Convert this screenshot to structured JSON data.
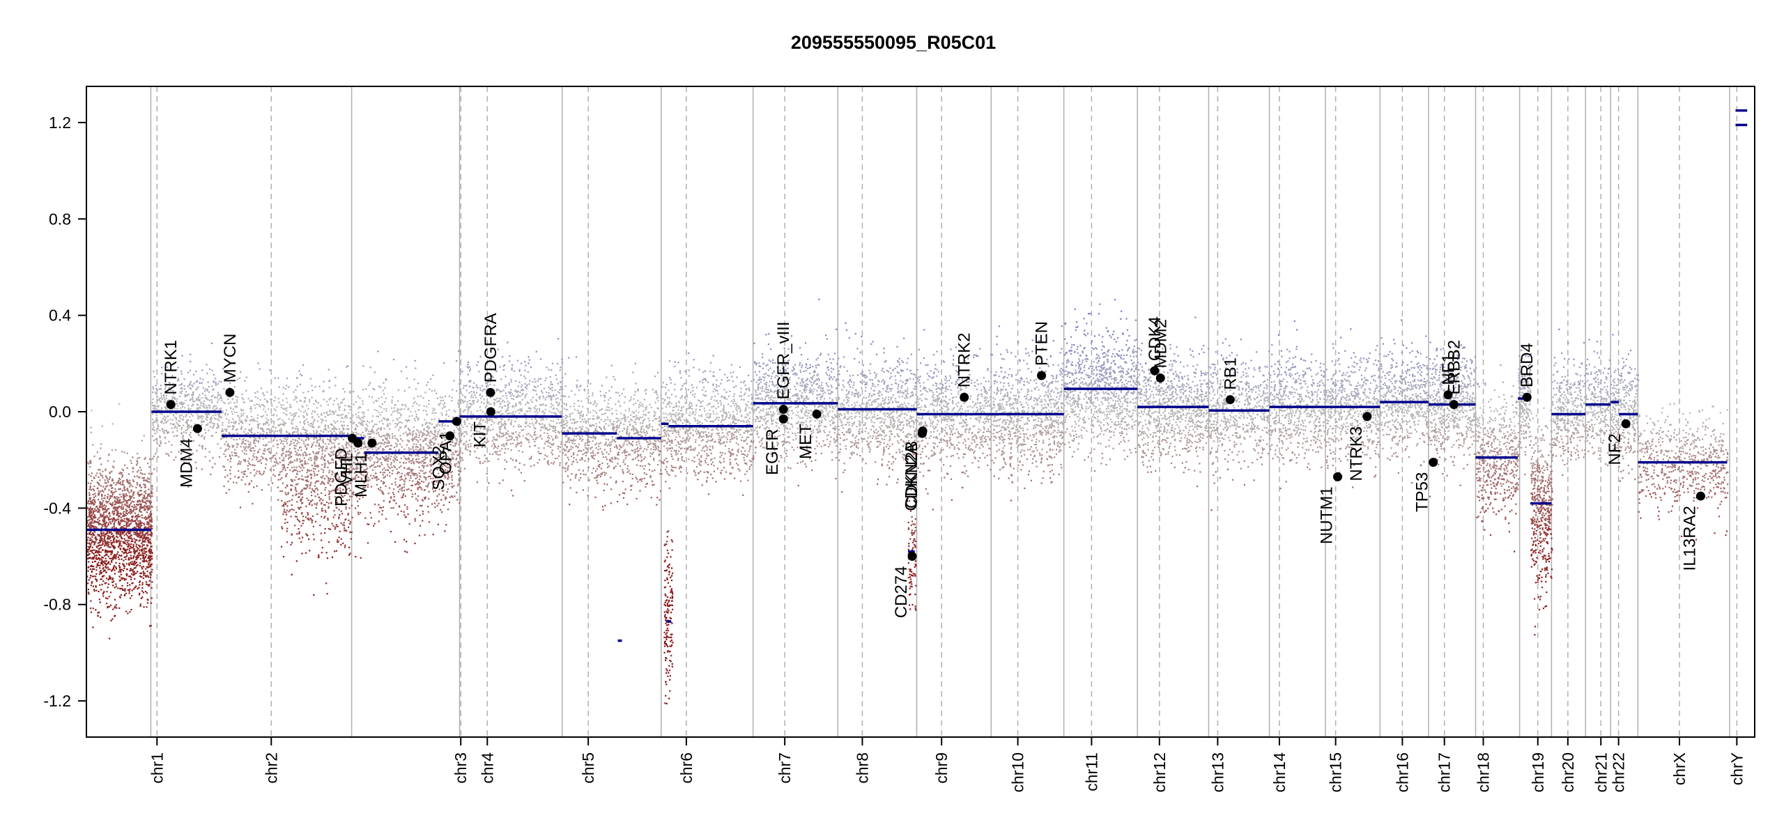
{
  "chart_data": {
    "type": "scatter",
    "title": "209555550095_R05C01",
    "xlabel": "",
    "ylabel": "",
    "ylim": [
      -1.35,
      1.35
    ],
    "y_ticks": [
      -1.2,
      -0.8,
      -0.4,
      0.0,
      0.4,
      0.8,
      1.2
    ],
    "y_tick_labels": [
      "-1.2",
      "-0.8",
      "-0.4",
      "0.0",
      "0.4",
      "0.8",
      "1.2"
    ],
    "colors": {
      "segment": "#00008b",
      "gain": "#7b7fc4",
      "neutral": "#b8b8b8",
      "loss": "#8b1a1a",
      "point": "#000000",
      "chrom_line": "#b0b0b0",
      "centromere_line": "#b0b0b0"
    },
    "chromosomes": [
      {
        "name": "chr1",
        "start": 0.0,
        "end": 0.0386,
        "centromere": 0.0423
      },
      {
        "name": "chr2",
        "start": 0.0386,
        "end": 0.159,
        "centromere": 0.1108
      },
      {
        "name": "chr3",
        "start": 0.159,
        "end": 0.2237,
        "centromere": 0.2244
      },
      {
        "name": "chr4",
        "start": 0.2237,
        "end": 0.2852,
        "centromere": 0.2403
      },
      {
        "name": "chr5",
        "start": 0.2852,
        "end": 0.3445,
        "centromere": 0.3008
      },
      {
        "name": "chr6",
        "start": 0.3445,
        "end": 0.3996,
        "centromere": 0.3596
      },
      {
        "name": "chr7",
        "start": 0.3996,
        "end": 0.4504,
        "centromere": 0.4186
      },
      {
        "name": "chr8",
        "start": 0.4504,
        "end": 0.4977,
        "centromere": 0.4651
      },
      {
        "name": "chr9",
        "start": 0.4977,
        "end": 0.5423,
        "centromere": 0.5126
      },
      {
        "name": "chr10",
        "start": 0.5423,
        "end": 0.5859,
        "centromere": 0.5583
      },
      {
        "name": "chr11",
        "start": 0.5859,
        "end": 0.63,
        "centromere": 0.6025
      },
      {
        "name": "chr12",
        "start": 0.63,
        "end": 0.6727,
        "centromere": 0.6432
      },
      {
        "name": "chr13",
        "start": 0.6727,
        "end": 0.7091,
        "centromere": 0.6781
      },
      {
        "name": "chr14",
        "start": 0.7091,
        "end": 0.7427,
        "centromere": 0.7151
      },
      {
        "name": "chr15",
        "start": 0.7427,
        "end": 0.7754,
        "centromere": 0.7488
      },
      {
        "name": "chr16",
        "start": 0.7754,
        "end": 0.8045,
        "centromere": 0.7888
      },
      {
        "name": "chr17",
        "start": 0.8045,
        "end": 0.8327,
        "centromere": 0.814
      },
      {
        "name": "chr18",
        "start": 0.8327,
        "end": 0.8591,
        "centromere": 0.8373
      },
      {
        "name": "chr19",
        "start": 0.8591,
        "end": 0.8782,
        "centromere": 0.87
      },
      {
        "name": "chr20",
        "start": 0.8782,
        "end": 0.8986,
        "centromere": 0.888
      },
      {
        "name": "chr21",
        "start": 0.8986,
        "end": 0.9136,
        "centromere": 0.9078
      },
      {
        "name": "chr22",
        "start": 0.9136,
        "end": 0.93,
        "centromere": 0.9184
      },
      {
        "name": "chrX",
        "start": 0.93,
        "end": 0.985,
        "centromere": 0.9549
      },
      {
        "name": "chrY",
        "start": 0.985,
        "end": 1.0,
        "centromere": 0.9893
      }
    ],
    "segments": [
      {
        "chrom": "chr1",
        "x_start": 0.0,
        "x_end": 0.039,
        "value": -0.49
      },
      {
        "chrom": "chr1",
        "x_start": 0.039,
        "x_end": 0.081,
        "value": 0.0
      },
      {
        "chrom": "chr2",
        "x_start": 0.081,
        "x_end": 0.159,
        "value": -0.1
      },
      {
        "chrom": "chr3",
        "x_start": 0.159,
        "x_end": 0.1665,
        "value": -0.11
      },
      {
        "chrom": "chr3",
        "x_start": 0.1665,
        "x_end": 0.211,
        "value": -0.17
      },
      {
        "chrom": "chr3",
        "x_start": 0.211,
        "x_end": 0.2237,
        "value": -0.04
      },
      {
        "chrom": "chr4",
        "x_start": 0.2237,
        "x_end": 0.285,
        "value": -0.02
      },
      {
        "chrom": "chr5",
        "x_start": 0.285,
        "x_end": 0.318,
        "value": -0.09
      },
      {
        "chrom": "chr5",
        "x_start": 0.318,
        "x_end": 0.3445,
        "value": -0.11
      },
      {
        "chrom": "chr6",
        "x_start": 0.3445,
        "x_end": 0.349,
        "value": -0.05
      },
      {
        "chrom": "chr6",
        "x_start": 0.349,
        "x_end": 0.3996,
        "value": -0.06
      },
      {
        "chrom": "chr7",
        "x_start": 0.3996,
        "x_end": 0.4504,
        "value": 0.035
      },
      {
        "chrom": "chr8",
        "x_start": 0.4504,
        "x_end": 0.4977,
        "value": 0.01
      },
      {
        "chrom": "chr9",
        "x_start": 0.4977,
        "x_end": 0.5423,
        "value": -0.01
      },
      {
        "chrom": "chr10",
        "x_start": 0.5423,
        "x_end": 0.5859,
        "value": -0.01
      },
      {
        "chrom": "chr11",
        "x_start": 0.5859,
        "x_end": 0.63,
        "value": 0.095
      },
      {
        "chrom": "chr12",
        "x_start": 0.63,
        "x_end": 0.6727,
        "value": 0.02
      },
      {
        "chrom": "chr13",
        "x_start": 0.6727,
        "x_end": 0.7091,
        "value": 0.005
      },
      {
        "chrom": "chr14",
        "x_start": 0.7091,
        "x_end": 0.7427,
        "value": 0.02
      },
      {
        "chrom": "chr15",
        "x_start": 0.7427,
        "x_end": 0.7754,
        "value": 0.02
      },
      {
        "chrom": "chr16",
        "x_start": 0.7754,
        "x_end": 0.8045,
        "value": 0.04
      },
      {
        "chrom": "chr17",
        "x_start": 0.8045,
        "x_end": 0.8327,
        "value": 0.03
      },
      {
        "chrom": "chr18",
        "x_start": 0.8327,
        "x_end": 0.858,
        "value": -0.19
      },
      {
        "chrom": "chr19",
        "x_start": 0.858,
        "x_end": 0.8655,
        "value": 0.055
      },
      {
        "chrom": "chr19",
        "x_start": 0.8655,
        "x_end": 0.8782,
        "value": -0.38
      },
      {
        "chrom": "chr20",
        "x_start": 0.8782,
        "x_end": 0.8986,
        "value": -0.01
      },
      {
        "chrom": "chr21",
        "x_start": 0.8986,
        "x_end": 0.9136,
        "value": 0.03
      },
      {
        "chrom": "chr22",
        "x_start": 0.9136,
        "x_end": 0.9185,
        "value": 0.04
      },
      {
        "chrom": "chr22",
        "x_start": 0.9185,
        "x_end": 0.93,
        "value": -0.01
      },
      {
        "chrom": "chrX",
        "x_start": 0.93,
        "x_end": 0.9835,
        "value": -0.21
      },
      {
        "chrom": "chrY",
        "x_start": 0.9885,
        "x_end": 0.9955,
        "value": 1.25
      },
      {
        "chrom": "chrY",
        "x_start": 0.9885,
        "x_end": 0.9955,
        "value": 1.19
      },
      {
        "chrom": "chr9",
        "x_start": 0.4925,
        "x_end": 0.4965,
        "value": -0.58
      },
      {
        "chrom": "chr5",
        "x_start": 0.3185,
        "x_end": 0.321,
        "value": -0.95
      },
      {
        "chrom": "chr6",
        "x_start": 0.3475,
        "x_end": 0.3505,
        "value": -0.87
      }
    ],
    "genes": [
      {
        "name": "NTRK1",
        "x": 0.0506,
        "y": 0.03,
        "label_side": "above"
      },
      {
        "name": "MDM4",
        "x": 0.0666,
        "y": -0.07,
        "label_side": "below"
      },
      {
        "name": "MYCN",
        "x": 0.086,
        "y": 0.08,
        "label_side": "above"
      },
      {
        "name": "PDGFD",
        "x": 0.1594,
        "y": -0.11,
        "label_side": "below"
      },
      {
        "name": "VHL",
        "x": 0.1628,
        "y": -0.13,
        "label_side": "below"
      },
      {
        "name": "MLH1",
        "x": 0.1712,
        "y": -0.13,
        "label_side": "below"
      },
      {
        "name": "SOX2",
        "x": 0.2179,
        "y": -0.1,
        "label_side": "below"
      },
      {
        "name": "OPA1",
        "x": 0.222,
        "y": -0.04,
        "label_side": "below"
      },
      {
        "name": "PDGFRA",
        "x": 0.2422,
        "y": 0.08,
        "label_side": "above"
      },
      {
        "name": "KIT",
        "x": 0.2424,
        "y": 0.0,
        "label_side": "below"
      },
      {
        "name": "EGFR_vIII",
        "x": 0.4178,
        "y": 0.01,
        "label_side": "above"
      },
      {
        "name": "EGFR",
        "x": 0.4178,
        "y": -0.03,
        "label_side": "below"
      },
      {
        "name": "MET",
        "x": 0.4378,
        "y": -0.01,
        "label_side": "below"
      },
      {
        "name": "CD274",
        "x": 0.495,
        "y": -0.6,
        "label_side": "below"
      },
      {
        "name": "CDKN2A",
        "x": 0.501,
        "y": -0.09,
        "label_side": "below"
      },
      {
        "name": "CDKN2B",
        "x": 0.5013,
        "y": -0.08,
        "label_side": "below"
      },
      {
        "name": "NTRK2",
        "x": 0.5262,
        "y": 0.06,
        "label_side": "above"
      },
      {
        "name": "PTEN",
        "x": 0.5725,
        "y": 0.15,
        "label_side": "above"
      },
      {
        "name": "CDK4",
        "x": 0.6403,
        "y": 0.17,
        "label_side": "above"
      },
      {
        "name": "MDM2",
        "x": 0.6438,
        "y": 0.14,
        "label_side": "above"
      },
      {
        "name": "RB1",
        "x": 0.6856,
        "y": 0.05,
        "label_side": "above"
      },
      {
        "name": "NUTM1",
        "x": 0.75,
        "y": -0.27,
        "label_side": "below"
      },
      {
        "name": "NTRK3",
        "x": 0.7677,
        "y": -0.02,
        "label_side": "below"
      },
      {
        "name": "TP53",
        "x": 0.8073,
        "y": -0.21,
        "label_side": "below"
      },
      {
        "name": "NF1",
        "x": 0.8162,
        "y": 0.07,
        "label_side": "above"
      },
      {
        "name": "ERBB2",
        "x": 0.8197,
        "y": 0.03,
        "label_side": "above"
      },
      {
        "name": "BRD4",
        "x": 0.8635,
        "y": 0.06,
        "label_side": "above"
      },
      {
        "name": "NF2",
        "x": 0.9228,
        "y": -0.05,
        "label_side": "below"
      },
      {
        "name": "IL13RA2",
        "x": 0.9676,
        "y": -0.35,
        "label_side": "below"
      }
    ],
    "noise_profiles": [
      {
        "chrom": "chr1",
        "x_start": 0.0,
        "x_end": 0.039,
        "center": -0.49,
        "spread": 0.14,
        "n": 1900,
        "seed": 11
      },
      {
        "chrom": "chr1",
        "x_start": 0.039,
        "x_end": 0.081,
        "center": 0.0,
        "spread": 0.09,
        "n": 600,
        "seed": 12
      },
      {
        "chrom": "chr2",
        "x_start": 0.081,
        "x_end": 0.159,
        "center": -0.1,
        "spread": 0.11,
        "n": 1100,
        "seed": 13
      },
      {
        "chrom": "chr2",
        "x_start": 0.1165,
        "x_end": 0.159,
        "center": -0.33,
        "spread": 0.13,
        "n": 500,
        "seed": 14
      },
      {
        "chrom": "chr3",
        "x_start": 0.159,
        "x_end": 0.2237,
        "center": -0.17,
        "spread": 0.13,
        "n": 1300,
        "seed": 15
      },
      {
        "chrom": "chr4",
        "x_start": 0.2237,
        "x_end": 0.285,
        "center": -0.02,
        "spread": 0.11,
        "n": 900,
        "seed": 16
      },
      {
        "chrom": "chr5",
        "x_start": 0.285,
        "x_end": 0.3445,
        "center": -0.1,
        "spread": 0.11,
        "n": 900,
        "seed": 17
      },
      {
        "chrom": "chr6",
        "x_start": 0.3445,
        "x_end": 0.3996,
        "center": -0.06,
        "spread": 0.11,
        "n": 900,
        "seed": 18
      },
      {
        "chrom": "chr6",
        "x_start": 0.346,
        "x_end": 0.351,
        "center": -0.85,
        "spread": 0.18,
        "n": 160,
        "seed": 19
      },
      {
        "chrom": "chr7",
        "x_start": 0.3996,
        "x_end": 0.4504,
        "center": 0.035,
        "spread": 0.11,
        "n": 900,
        "seed": 20
      },
      {
        "chrom": "chr8",
        "x_start": 0.4504,
        "x_end": 0.4977,
        "center": 0.01,
        "spread": 0.11,
        "n": 800,
        "seed": 21
      },
      {
        "chrom": "chr9",
        "x_start": 0.4977,
        "x_end": 0.5423,
        "center": -0.01,
        "spread": 0.11,
        "n": 700,
        "seed": 22
      },
      {
        "chrom": "chr9",
        "x_start": 0.4922,
        "x_end": 0.4968,
        "center": -0.55,
        "spread": 0.12,
        "n": 90,
        "seed": 23
      },
      {
        "chrom": "chr10",
        "x_start": 0.5423,
        "x_end": 0.5859,
        "center": -0.01,
        "spread": 0.12,
        "n": 800,
        "seed": 24
      },
      {
        "chrom": "chr11",
        "x_start": 0.5859,
        "x_end": 0.63,
        "center": 0.095,
        "spread": 0.12,
        "n": 900,
        "seed": 25
      },
      {
        "chrom": "chr12",
        "x_start": 0.63,
        "x_end": 0.6727,
        "center": 0.02,
        "spread": 0.11,
        "n": 800,
        "seed": 26
      },
      {
        "chrom": "chr13",
        "x_start": 0.6727,
        "x_end": 0.7091,
        "center": 0.005,
        "spread": 0.11,
        "n": 550,
        "seed": 27
      },
      {
        "chrom": "chr14",
        "x_start": 0.7091,
        "x_end": 0.7427,
        "center": 0.02,
        "spread": 0.11,
        "n": 550,
        "seed": 28
      },
      {
        "chrom": "chr15",
        "x_start": 0.7427,
        "x_end": 0.7754,
        "center": 0.02,
        "spread": 0.11,
        "n": 550,
        "seed": 29
      },
      {
        "chrom": "chr16",
        "x_start": 0.7754,
        "x_end": 0.8045,
        "center": 0.04,
        "spread": 0.11,
        "n": 500,
        "seed": 30
      },
      {
        "chrom": "chr17",
        "x_start": 0.8045,
        "x_end": 0.8327,
        "center": 0.03,
        "spread": 0.11,
        "n": 550,
        "seed": 31
      },
      {
        "chrom": "chr18",
        "x_start": 0.8327,
        "x_end": 0.858,
        "center": -0.19,
        "spread": 0.13,
        "n": 500,
        "seed": 32
      },
      {
        "chrom": "chr19",
        "x_start": 0.858,
        "x_end": 0.8655,
        "center": 0.05,
        "spread": 0.1,
        "n": 200,
        "seed": 33
      },
      {
        "chrom": "chr19",
        "x_start": 0.8655,
        "x_end": 0.8782,
        "center": -0.4,
        "spread": 0.17,
        "n": 450,
        "seed": 34
      },
      {
        "chrom": "chr20",
        "x_start": 0.8782,
        "x_end": 0.8986,
        "center": -0.01,
        "spread": 0.11,
        "n": 350,
        "seed": 35
      },
      {
        "chrom": "chr21",
        "x_start": 0.8986,
        "x_end": 0.9136,
        "center": 0.03,
        "spread": 0.1,
        "n": 220,
        "seed": 36
      },
      {
        "chrom": "chr22",
        "x_start": 0.9136,
        "x_end": 0.93,
        "center": -0.01,
        "spread": 0.11,
        "n": 300,
        "seed": 37
      },
      {
        "chrom": "chrX",
        "x_start": 0.93,
        "x_end": 0.9835,
        "center": -0.21,
        "spread": 0.1,
        "n": 600,
        "seed": 38
      }
    ]
  }
}
